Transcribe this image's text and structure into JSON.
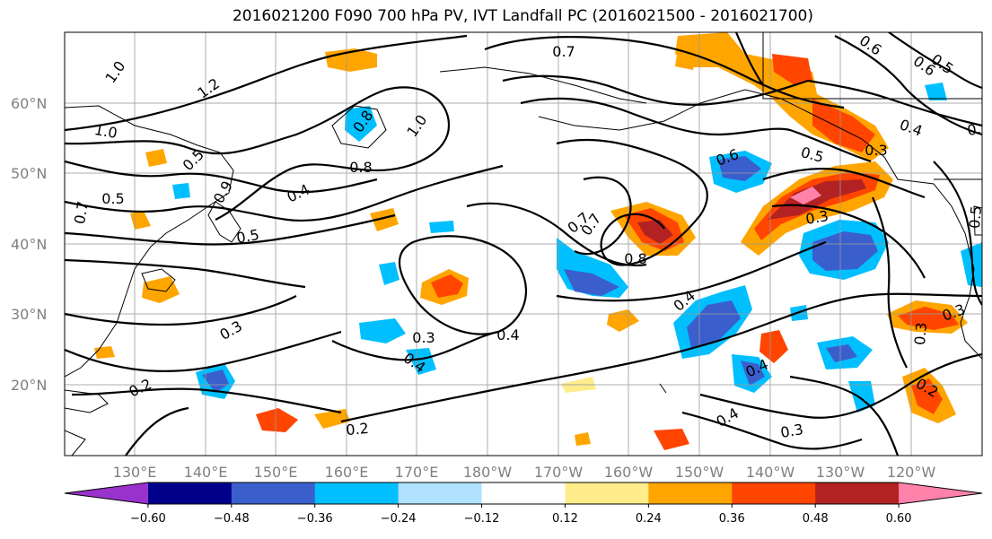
{
  "title": "2016021200 F090 700 hPa PV, IVT Landfall PC (2016021500 - 2016021700)",
  "lat_labels": [
    "60°N",
    "50°N",
    "40°N",
    "30°N",
    "20°N"
  ],
  "lon_labels": [
    "130°E",
    "140°E",
    "150°E",
    "160°E",
    "170°E",
    "180°W",
    "170°W",
    "160°W",
    "150°W",
    "140°W",
    "130°W",
    "120°W"
  ],
  "colorbar": {
    "colors": [
      "#9932cc",
      "#00008b",
      "#3a5fcd",
      "#00bfff",
      "#b0e2ff",
      "#ffffff",
      "#ffec8b",
      "#ffa500",
      "#ff4500",
      "#b22222",
      "#ff82ab"
    ],
    "ticks": [
      "−0.60",
      "−0.48",
      "−0.36",
      "−0.24",
      "−0.12",
      "0.12",
      "0.24",
      "0.36",
      "0.48",
      "0.60"
    ]
  },
  "contour_labels": [
    "1.0",
    "1.2",
    "1.0",
    "0.7",
    "0.5",
    "0.8",
    "0.4",
    "0.5",
    "0.9",
    "1.0",
    "0.8",
    "0.5",
    "0.7",
    "0.7",
    "0.6",
    "0.5",
    "0.4",
    "0.3",
    "0.6",
    "0.5",
    "0.7",
    "0.8",
    "0.6",
    "0.3",
    "0.4",
    "0.4",
    "0.3",
    "0.4",
    "0.2",
    "0.2",
    "0.3",
    "0.4",
    "0.3",
    "0.2",
    "0.3",
    "0.4",
    "0.3",
    "0.5",
    "0.6"
  ]
}
